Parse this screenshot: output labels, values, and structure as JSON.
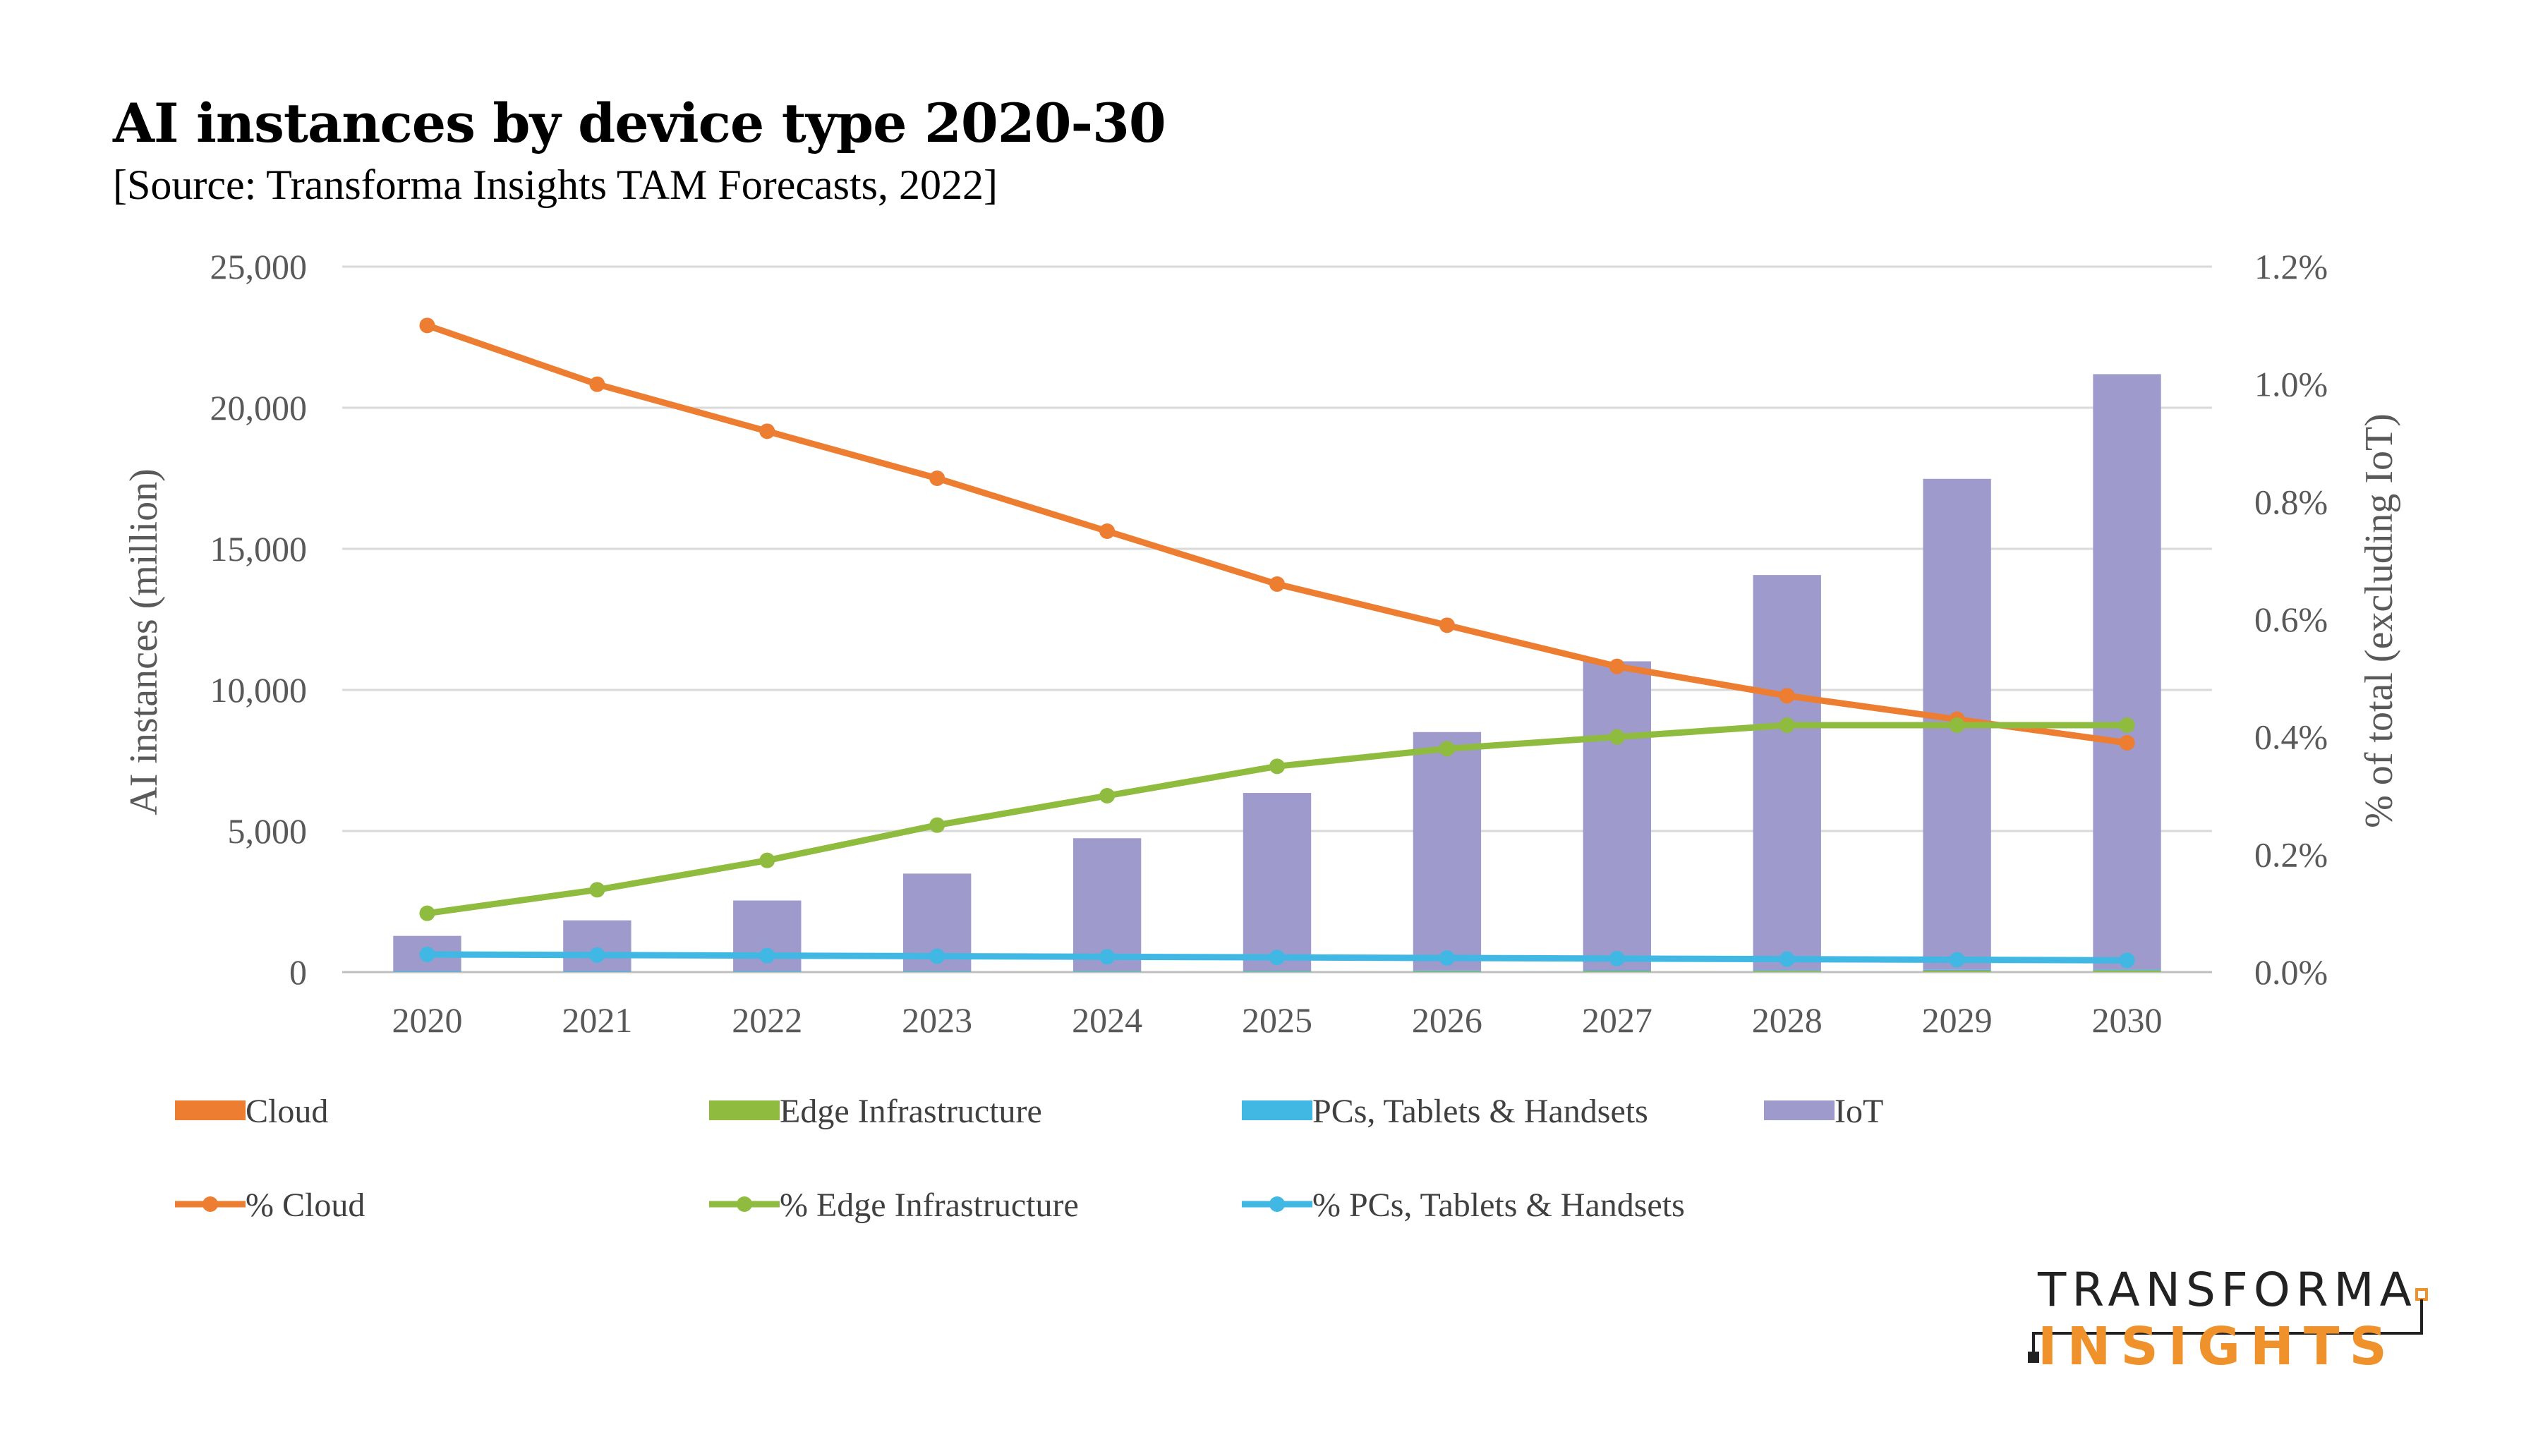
{
  "header": {
    "title": "AI instances by device type 2020-30",
    "subtitle": "[Source: Transforma Insights TAM Forecasts, 2022]"
  },
  "logo": {
    "line1": "TRANSFORMA",
    "line2": "INSIGHTS",
    "accent_color": "#f0922b"
  },
  "chart_data": {
    "type": "bar",
    "categories": [
      "2020",
      "2021",
      "2022",
      "2023",
      "2024",
      "2025",
      "2026",
      "2027",
      "2028",
      "2029",
      "2030"
    ],
    "ylabel": "AI instances (million)",
    "y2label": "% of total (excluding IoT)",
    "ylim": [
      0,
      25000
    ],
    "y2lim": [
      0,
      0.012
    ],
    "yticks": [
      "0",
      "5,000",
      "10,000",
      "15,000",
      "20,000",
      "25,000"
    ],
    "y2ticks": [
      "0.0%",
      "0.2%",
      "0.4%",
      "0.6%",
      "0.8%",
      "1.0%",
      "1.2%"
    ],
    "grid": true,
    "legend_position": "bottom",
    "bar_series": [
      {
        "name": "Cloud",
        "color": "#ed7d31",
        "values": [
          1,
          1,
          1,
          2,
          2,
          2,
          3,
          3,
          4,
          4,
          5
        ]
      },
      {
        "name": "Edge Infrastructure",
        "color": "#8fbc3f",
        "values": [
          2,
          3,
          5,
          8,
          12,
          17,
          23,
          30,
          38,
          46,
          55
        ]
      },
      {
        "name": "PCs, Tablets & Handsets",
        "color": "#41b8e4",
        "values": [
          30,
          30,
          30,
          30,
          30,
          30,
          30,
          30,
          30,
          30,
          30
        ]
      },
      {
        "name": "IoT",
        "color": "#9e9acb",
        "values": [
          1250,
          1800,
          2500,
          3450,
          4700,
          6300,
          8450,
          10950,
          14000,
          17400,
          21100
        ]
      }
    ],
    "line_series": [
      {
        "name": "% Cloud",
        "color": "#ed7d31",
        "values": [
          0.011,
          0.01,
          0.0092,
          0.0084,
          0.0075,
          0.0066,
          0.0059,
          0.0052,
          0.0047,
          0.0043,
          0.0039
        ]
      },
      {
        "name": "% Edge Infrastructure",
        "color": "#8fbc3f",
        "values": [
          0.001,
          0.0014,
          0.0019,
          0.0025,
          0.003,
          0.0035,
          0.0038,
          0.004,
          0.0042,
          0.0042,
          0.0042
        ]
      },
      {
        "name": "% PCs, Tablets & Handsets",
        "color": "#41b8e4",
        "values": [
          0.0003,
          0.00029,
          0.00028,
          0.00027,
          0.00026,
          0.00025,
          0.00024,
          0.00023,
          0.00022,
          0.00021,
          0.0002
        ]
      }
    ]
  }
}
